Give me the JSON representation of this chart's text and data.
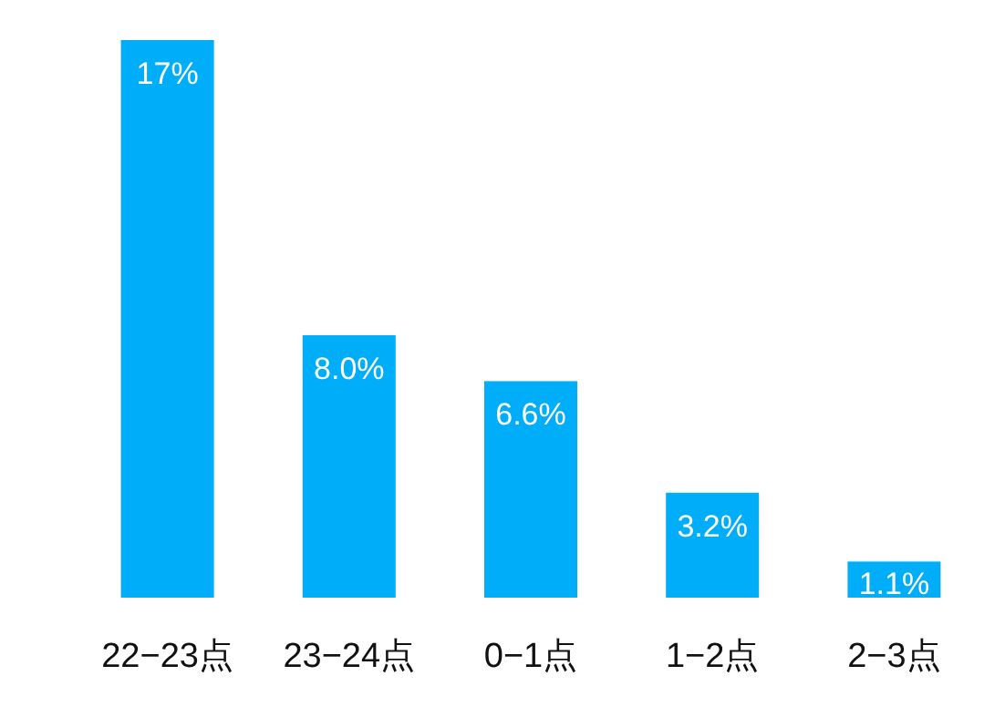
{
  "chart_data": {
    "type": "bar",
    "categories": [
      "22−23点",
      "23−24点",
      "0−1点",
      "1−2点",
      "2−3点"
    ],
    "values": [
      17,
      8.0,
      6.6,
      3.2,
      1.1
    ],
    "value_labels": [
      "17%",
      "8.0%",
      "6.6%",
      "3.2%",
      "1.1%"
    ],
    "color": "#00adf9"
  }
}
